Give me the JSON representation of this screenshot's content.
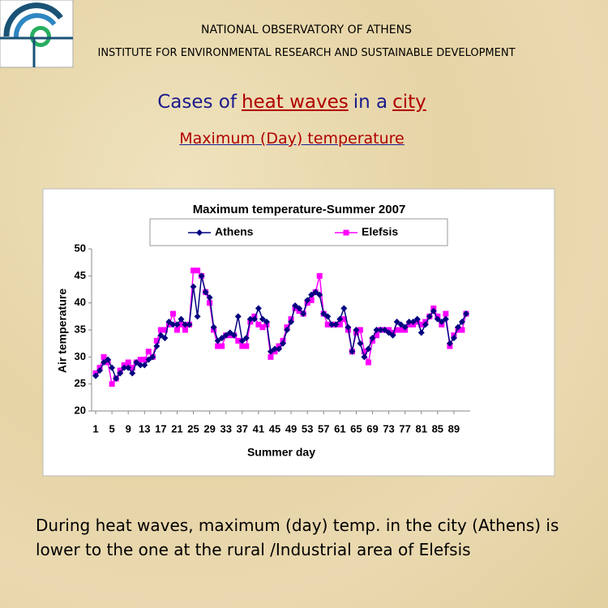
{
  "header": {
    "organization": "NATIONAL OBSERVATORY OF ATHENS",
    "institute": "INSTITUTE FOR ENVIRONMENTAL RESEARCH AND SUSTAINABLE DEVELOPMENT",
    "title": [
      "Cases of",
      "heat waves",
      "in a",
      "city"
    ],
    "subtitle": "Maximum (Day) temperature"
  },
  "chart_data": {
    "type": "line",
    "title": "Maximum temperature-Summer 2007",
    "x_label": "Summer day",
    "y_label": "Air temperature",
    "x": [
      1,
      2,
      3,
      4,
      5,
      6,
      7,
      8,
      9,
      10,
      11,
      12,
      13,
      14,
      15,
      16,
      17,
      18,
      19,
      20,
      21,
      22,
      23,
      24,
      25,
      26,
      27,
      28,
      29,
      30,
      31,
      32,
      33,
      34,
      35,
      36,
      37,
      38,
      39,
      40,
      41,
      42,
      43,
      44,
      45,
      46,
      47,
      48,
      49,
      50,
      51,
      52,
      53,
      54,
      55,
      56,
      57,
      58,
      59,
      60,
      61,
      62,
      63,
      64,
      65,
      66,
      67,
      68,
      69,
      70,
      71,
      72,
      73,
      74,
      75,
      76,
      77,
      78,
      79,
      80,
      81,
      82,
      83,
      84,
      85,
      86,
      87,
      88,
      89,
      90,
      91,
      92
    ],
    "series": [
      {
        "name": "Athens",
        "color": "#000080",
        "marker": "diamond",
        "values": [
          26.5,
          27.5,
          29,
          29.5,
          28,
          26,
          27,
          28,
          28,
          27,
          29,
          28.5,
          28.5,
          29.5,
          30,
          32,
          34,
          33.5,
          36.5,
          36,
          36,
          37,
          36,
          36,
          43,
          37.5,
          45,
          42,
          41,
          35.5,
          33,
          33.5,
          34,
          34.5,
          34,
          37.5,
          33,
          33.5,
          37,
          37,
          39,
          37,
          36.5,
          31,
          31.5,
          31.5,
          32.5,
          35,
          36.5,
          39.5,
          39,
          38,
          40.5,
          41.5,
          42,
          41.5,
          38,
          37.5,
          36,
          36,
          37,
          39,
          35.5,
          31,
          35,
          32.5,
          30,
          31.5,
          33.5,
          35,
          35,
          35,
          34.5,
          34,
          36.5,
          36,
          35.5,
          36.5,
          36.5,
          37,
          34.5,
          36,
          37.5,
          38.5,
          37,
          36.5,
          37,
          32.5,
          33.5,
          35.5,
          36.5,
          38
        ]
      },
      {
        "name": "Elefsis",
        "color": "#ff00ff",
        "marker": "square",
        "values": [
          27,
          28,
          30,
          29,
          25,
          26,
          27.5,
          28.5,
          29,
          28,
          29,
          29.5,
          29.5,
          31,
          30,
          33,
          35,
          35,
          36,
          38,
          35,
          36,
          35,
          36,
          46,
          46,
          45,
          42,
          40,
          35,
          32,
          32,
          34,
          34,
          34,
          33,
          32,
          32,
          36.5,
          37.5,
          36,
          35.5,
          36,
          30,
          31,
          32,
          33,
          35.5,
          37,
          39,
          38.5,
          38,
          40,
          40.5,
          42,
          45,
          38,
          36,
          36,
          36,
          36,
          37,
          35,
          31,
          34.5,
          35,
          31,
          29,
          33,
          34,
          35,
          35,
          35,
          34.5,
          35,
          35,
          35,
          36,
          36,
          36.5,
          36,
          36.5,
          37.5,
          39,
          37.5,
          36,
          38,
          32,
          34,
          35,
          35,
          38
        ]
      }
    ],
    "xlim": [
      0,
      93
    ],
    "xticks": [
      1,
      5,
      9,
      13,
      17,
      21,
      25,
      29,
      33,
      37,
      41,
      45,
      49,
      53,
      57,
      61,
      65,
      69,
      73,
      77,
      81,
      85,
      89
    ],
    "ylim": [
      20,
      50
    ],
    "yticks": [
      20,
      25,
      30,
      35,
      40,
      45,
      50
    ],
    "grid": false,
    "legend": "top"
  },
  "caption": "During heat waves, maximum (day) temp. in the city (Athens) is lower to the one at the rural /Industrial area of Elefsis"
}
